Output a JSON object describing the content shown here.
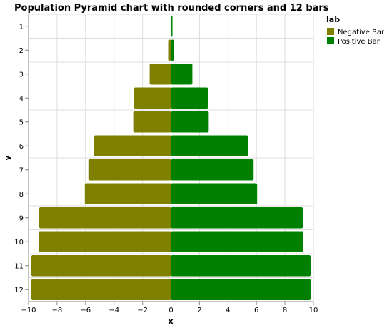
{
  "chart_data": {
    "type": "bar",
    "title": "Population Pyramid chart with rounded corners and 12 bars",
    "xlabel": "x",
    "ylabel": "y",
    "xlim": [
      -10,
      10
    ],
    "x_ticks": [
      -10,
      -8,
      -6,
      -4,
      -2,
      0,
      2,
      4,
      6,
      8,
      10
    ],
    "x_tick_labels": [
      "−10",
      "−8",
      "−6",
      "−4",
      "−2",
      "0",
      "2",
      "4",
      "6",
      "8",
      "10"
    ],
    "categories": [
      "1",
      "2",
      "3",
      "4",
      "5",
      "6",
      "7",
      "8",
      "9",
      "10",
      "11",
      "12"
    ],
    "grid": true,
    "legend": {
      "title": "lab",
      "placement": "top-right"
    },
    "series": [
      {
        "name": "Negative Bar",
        "color": "#808000",
        "values": [
          0,
          -0.2,
          -1.5,
          -2.6,
          -2.65,
          -5.4,
          -5.8,
          -6.05,
          -9.25,
          -9.3,
          -9.8,
          -9.8
        ]
      },
      {
        "name": "Positive Bar",
        "color": "#008000",
        "values": [
          0.1,
          0.2,
          1.5,
          2.6,
          2.65,
          5.4,
          5.8,
          6.05,
          9.25,
          9.3,
          9.8,
          9.8
        ]
      }
    ]
  }
}
